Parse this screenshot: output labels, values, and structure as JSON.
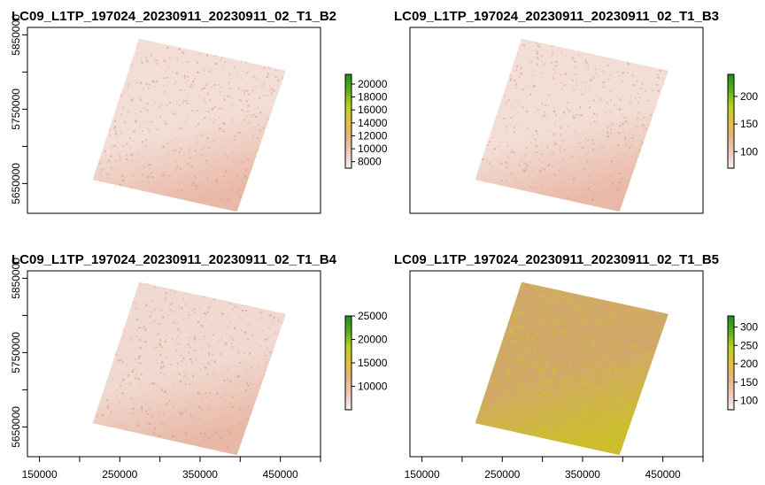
{
  "chart_data": [
    {
      "type": "heatmap",
      "title": "LC09_L1TP_197024_20230911_20230911_02_T1_B2",
      "x_ticks": [],
      "y_ticks": [
        "5650000",
        "5750000",
        "5850000"
      ],
      "xlim": [
        135000,
        500000
      ],
      "ylim": [
        5610000,
        5860000
      ],
      "footprint": {
        "color_low": "#f2ded6",
        "color_mid": "#e9b9a8",
        "speckle": "#d4a07a"
      },
      "legend": {
        "ticks": [
          "8000",
          "10000",
          "12000",
          "14000",
          "16000",
          "18000",
          "20000"
        ],
        "range": [
          7000,
          21500
        ],
        "colors": [
          "#f1f0f0",
          "#eec9ba",
          "#e9b481",
          "#e3c13a",
          "#b7d11d",
          "#5dad1a",
          "#179416"
        ]
      }
    },
    {
      "type": "heatmap",
      "title": "LC09_L1TP_197024_20230911_20230911_02_T1_B3",
      "x_ticks": [],
      "y_ticks": [],
      "xlim": [
        135000,
        500000
      ],
      "ylim": [
        5610000,
        5860000
      ],
      "footprint": {
        "color_low": "#f2ded6",
        "color_mid": "#e9b9a8",
        "speckle": "#d4a07a"
      },
      "legend": {
        "ticks": [
          "100",
          "150",
          "200"
        ],
        "range": [
          70,
          240
        ],
        "colors": [
          "#f1f0f0",
          "#eec9ba",
          "#e9b481",
          "#e3c13a",
          "#b7d11d",
          "#5dad1a",
          "#179416"
        ]
      }
    },
    {
      "type": "heatmap",
      "title": "LC09_L1TP_197024_20230911_20230911_02_T1_B4",
      "x_ticks": [
        "150000",
        "250000",
        "350000",
        "450000"
      ],
      "y_ticks": [
        "5650000",
        "5750000",
        "5850000"
      ],
      "xlim": [
        135000,
        500000
      ],
      "ylim": [
        5610000,
        5860000
      ],
      "footprint": {
        "color_low": "#f0d9d0",
        "color_mid": "#e8b7a5",
        "speckle": "#d99b6e"
      },
      "legend": {
        "ticks": [
          "10000",
          "15000",
          "20000",
          "25000"
        ],
        "range": [
          5000,
          25000
        ],
        "colors": [
          "#f1f0f0",
          "#eec9ba",
          "#e9b481",
          "#e3c13a",
          "#b7d11d",
          "#5dad1a",
          "#179416"
        ]
      }
    },
    {
      "type": "heatmap",
      "title": "LC09_L1TP_197024_20230911_20230911_02_T1_B5",
      "x_ticks": [
        "150000",
        "250000",
        "350000",
        "450000"
      ],
      "y_ticks": [],
      "xlim": [
        135000,
        500000
      ],
      "ylim": [
        5610000,
        5860000
      ],
      "footprint": {
        "color_low": "#d2a86a",
        "color_mid": "#cdbd2e",
        "speckle": "#b9d41c"
      },
      "legend": {
        "ticks": [
          "100",
          "150",
          "200",
          "250",
          "300"
        ],
        "range": [
          75,
          330
        ],
        "colors": [
          "#f1f0f0",
          "#eec9ba",
          "#e9b481",
          "#e3c13a",
          "#b7d11d",
          "#5dad1a",
          "#179416"
        ]
      }
    }
  ]
}
